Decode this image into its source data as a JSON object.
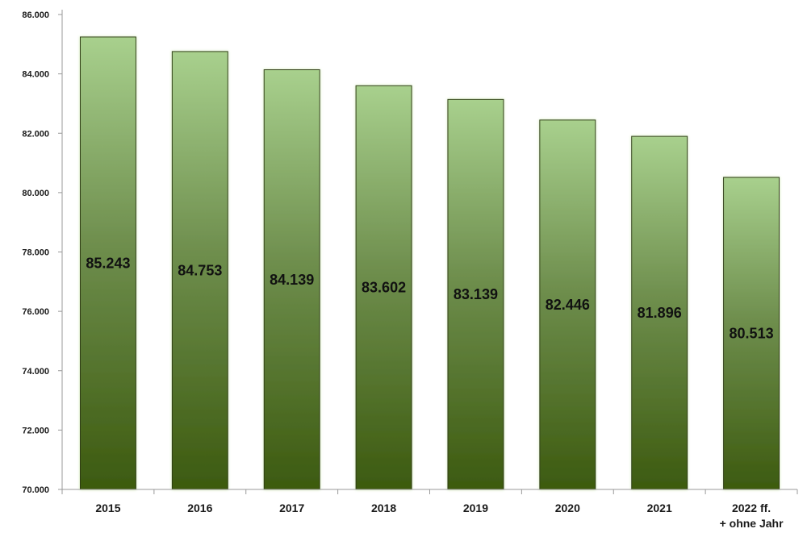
{
  "chart_data": {
    "type": "bar",
    "title": "",
    "xlabel": "",
    "ylabel": "",
    "categories": [
      "2015",
      "2016",
      "2017",
      "2018",
      "2019",
      "2020",
      "2021",
      "2022 ff.\n+ ohne Jahr"
    ],
    "values": [
      85243,
      84753,
      84139,
      83602,
      83139,
      82446,
      81896,
      80513
    ],
    "data_labels": [
      "85.243",
      "84.753",
      "84.139",
      "83.602",
      "83.139",
      "82.446",
      "81.896",
      "80.513"
    ],
    "ylim": [
      70000,
      86000
    ],
    "yticks": [
      70000,
      72000,
      74000,
      76000,
      78000,
      80000,
      82000,
      84000,
      86000
    ],
    "ytick_labels": [
      "70.000",
      "72.000",
      "74.000",
      "76.000",
      "78.000",
      "80.000",
      "82.000",
      "84.000",
      "86.000"
    ],
    "grid": false,
    "legend": "none",
    "colors": {
      "bar_top": "#a8d08d",
      "bar_mid": "#6f8f4e",
      "bar_bottom": "#3c5a0f",
      "axis": "#999999"
    }
  }
}
